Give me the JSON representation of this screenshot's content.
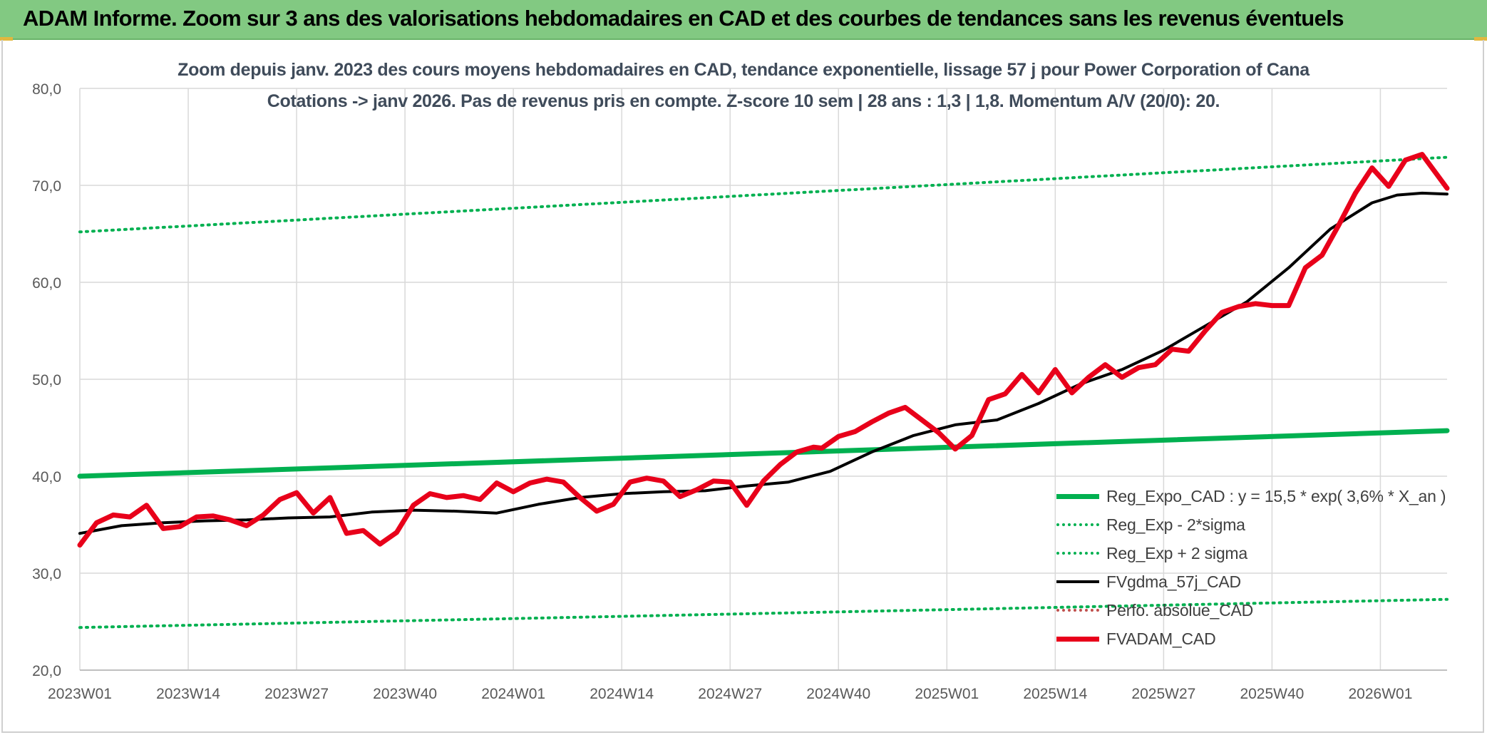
{
  "header": {
    "title": "ADAM Informe. Zoom sur 3 ans des valorisations hebdomadaires en CAD et des courbes de tendances sans les revenus éventuels"
  },
  "colors": {
    "header_bg": "#82c982",
    "trend": "#00b050",
    "band": "#00b050",
    "smooth": "#000000",
    "perf": "#c0504d",
    "price": "#e8001a"
  },
  "chart_data": {
    "type": "line",
    "subtitle_lines": [
      "Zoom depuis janv. 2023 des cours moyens hebdomadaires en CAD, tendance exponentielle, lissage 57 j pour Power Corporation of Cana",
      "Cotations -> janv 2026. Pas de revenus pris en compte. Z-score 10 sem | 28 ans : 1,3 | 1,8. Momentum A/V (20/0): 20."
    ],
    "x_categories": [
      "2023W01",
      "2023W14",
      "2023W27",
      "2023W40",
      "2024W01",
      "2024W14",
      "2024W27",
      "2024W40",
      "2025W01",
      "2025W14",
      "2025W27",
      "2025W40",
      "2026W01"
    ],
    "x_range_weeks": [
      0,
      164
    ],
    "ylim": [
      20,
      80
    ],
    "y_ticks": [
      "20,0",
      "30,0",
      "40,0",
      "50,0",
      "60,0",
      "70,0",
      "80,0"
    ],
    "y_tick_values": [
      20,
      30,
      40,
      50,
      60,
      70,
      80
    ],
    "grid": true,
    "legend_position": "bottom-right",
    "series": [
      {
        "name": "Reg_Expo_CAD : y = 15,5 * exp( 3,6% *  X_an )",
        "style": "solid-thick",
        "color": "#00b050",
        "x": [
          0,
          164
        ],
        "y": [
          40.0,
          44.7
        ]
      },
      {
        "name": "Reg_Exp - 2*sigma",
        "style": "dotted",
        "color": "#00b050",
        "x": [
          0,
          164
        ],
        "y": [
          24.4,
          27.3
        ]
      },
      {
        "name": "Reg_Exp + 2 sigma",
        "style": "dotted",
        "color": "#00b050",
        "x": [
          0,
          164
        ],
        "y": [
          65.2,
          72.9
        ]
      },
      {
        "name": "FVgdma_57j_CAD",
        "style": "solid",
        "color": "#000000",
        "x": [
          0,
          5,
          10,
          15,
          20,
          25,
          30,
          35,
          40,
          45,
          50,
          55,
          60,
          65,
          70,
          75,
          80,
          85,
          90,
          95,
          100,
          105,
          110,
          115,
          120,
          125,
          130,
          135,
          140,
          145,
          150,
          155,
          158,
          161,
          164
        ],
        "y": [
          34.1,
          34.9,
          35.2,
          35.4,
          35.5,
          35.7,
          35.8,
          36.3,
          36.5,
          36.4,
          36.2,
          37.1,
          37.8,
          38.2,
          38.4,
          38.5,
          39.0,
          39.4,
          40.5,
          42.5,
          44.2,
          45.3,
          45.8,
          47.5,
          49.5,
          51.0,
          53.0,
          55.5,
          58.0,
          61.5,
          65.5,
          68.2,
          69.0,
          69.2,
          69.1
        ]
      },
      {
        "name": "Perfo. absolue_CAD",
        "style": "dotted",
        "color": "#c0504d",
        "x": [],
        "y": []
      },
      {
        "name": "FVADAM_CAD",
        "style": "solid-thick",
        "color": "#e8001a",
        "x": [
          0,
          2,
          4,
          6,
          8,
          10,
          12,
          14,
          16,
          18,
          20,
          22,
          24,
          26,
          28,
          30,
          32,
          34,
          36,
          38,
          40,
          42,
          44,
          46,
          48,
          50,
          52,
          54,
          56,
          58,
          60,
          62,
          64,
          66,
          68,
          70,
          72,
          74,
          76,
          78,
          80,
          82,
          84,
          86,
          88,
          89,
          91,
          93,
          95,
          97,
          99,
          101,
          103,
          105,
          107,
          109,
          111,
          113,
          115,
          117,
          119,
          121,
          123,
          125,
          127,
          129,
          131,
          133,
          135,
          137,
          139,
          141,
          143,
          145,
          147,
          149,
          151,
          153,
          155,
          157,
          159,
          161,
          164
        ],
        "y": [
          32.9,
          35.2,
          36.0,
          35.8,
          37.0,
          34.6,
          34.8,
          35.8,
          35.9,
          35.5,
          34.9,
          36.0,
          37.6,
          38.3,
          36.2,
          37.8,
          34.1,
          34.4,
          33.0,
          34.2,
          37.0,
          38.2,
          37.8,
          38.0,
          37.6,
          39.3,
          38.4,
          39.3,
          39.7,
          39.4,
          37.8,
          36.4,
          37.1,
          39.4,
          39.8,
          39.5,
          37.9,
          38.6,
          39.5,
          39.4,
          37.0,
          39.5,
          41.2,
          42.5,
          43.0,
          42.9,
          44.1,
          44.6,
          45.6,
          46.5,
          47.1,
          45.8,
          44.5,
          42.8,
          44.2,
          47.9,
          48.5,
          50.5,
          48.6,
          51.0,
          48.6,
          50.2,
          51.5,
          50.2,
          51.2,
          51.5,
          53.1,
          52.9,
          55.0,
          56.9,
          57.5,
          57.8,
          57.6,
          57.6,
          61.5,
          62.8,
          65.9,
          69.2,
          71.8,
          69.9,
          72.6,
          73.2,
          69.7
        ]
      }
    ]
  }
}
